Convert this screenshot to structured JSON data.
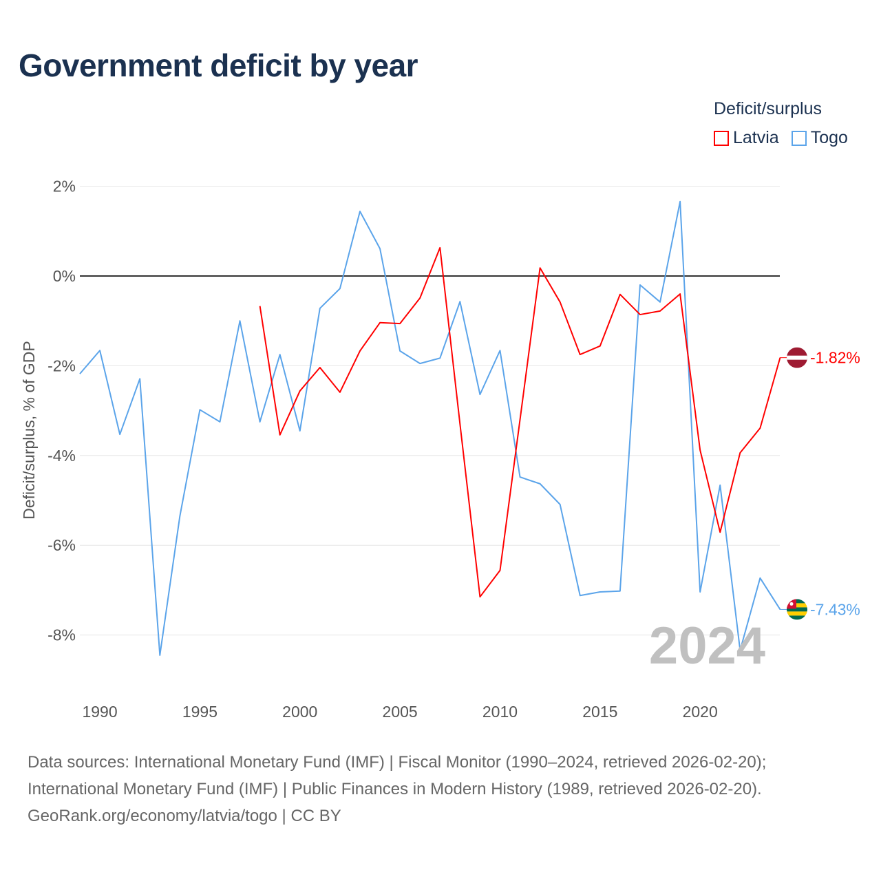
{
  "title": "Government deficit by year",
  "legend": {
    "title": "Deficit/surplus",
    "items": [
      {
        "label": "Latvia",
        "color": "#ff0000"
      },
      {
        "label": "Togo",
        "color": "#5ba4ea"
      }
    ]
  },
  "watermark_year": "2024",
  "footer": [
    "Data sources: International Monetary Fund (IMF) | Fiscal Monitor (1990–2024, retrieved 2026-02-20);",
    "International Monetary Fund (IMF) | Public Finances in Modern History (1989, retrieved 2026-02-20).",
    "GeoRank.org/economy/latvia/togo | CC BY"
  ],
  "chart_data": {
    "type": "line",
    "title": "Government deficit by year",
    "xlabel": "",
    "ylabel": "Deficit/surplus, % of GDP",
    "xlim": [
      1989,
      2024
    ],
    "ylim": [
      -9.5,
      2.5
    ],
    "x_ticks": [
      {
        "v": 1990,
        "label": "1990"
      },
      {
        "v": 1995,
        "label": "1995"
      },
      {
        "v": 2000,
        "label": "2000"
      },
      {
        "v": 2005,
        "label": "2005"
      },
      {
        "v": 2010,
        "label": "2010"
      },
      {
        "v": 2015,
        "label": "2015"
      },
      {
        "v": 2020,
        "label": "2020"
      }
    ],
    "y_ticks": [
      {
        "v": 2,
        "label": "2%"
      },
      {
        "v": 0,
        "label": "0%"
      },
      {
        "v": -2,
        "label": "-2%"
      },
      {
        "v": -4,
        "label": "-4%"
      },
      {
        "v": -6,
        "label": "-6%"
      },
      {
        "v": -8,
        "label": "-8%"
      }
    ],
    "grid": true,
    "legend_position": "top-right",
    "series": [
      {
        "name": "Latvia",
        "color": "#ff0000",
        "end_label": "-1.82%",
        "x": [
          1998,
          1999,
          2000,
          2001,
          2002,
          2003,
          2004,
          2005,
          2006,
          2007,
          2008,
          2009,
          2010,
          2011,
          2012,
          2013,
          2014,
          2015,
          2016,
          2017,
          2018,
          2019,
          2020,
          2021,
          2022,
          2023,
          2024
        ],
        "y": [
          -0.67,
          -3.54,
          -2.56,
          -2.04,
          -2.59,
          -1.67,
          -1.04,
          -1.06,
          -0.49,
          0.63,
          -3.3,
          -7.15,
          -6.56,
          -3.2,
          0.18,
          -0.58,
          -1.75,
          -1.56,
          -0.41,
          -0.86,
          -0.78,
          -0.4,
          -3.88,
          -5.71,
          -3.94,
          -3.39,
          -1.82
        ]
      },
      {
        "name": "Togo",
        "color": "#5ba4ea",
        "end_label": "-7.43%",
        "x": [
          1989,
          1990,
          1991,
          1992,
          1993,
          1994,
          1995,
          1996,
          1997,
          1998,
          1999,
          2000,
          2001,
          2002,
          2003,
          2004,
          2005,
          2006,
          2007,
          2008,
          2009,
          2010,
          2011,
          2012,
          2013,
          2014,
          2015,
          2016,
          2017,
          2018,
          2019,
          2020,
          2021,
          2022,
          2023,
          2024
        ],
        "y": [
          -2.18,
          -1.66,
          -3.53,
          -2.29,
          -8.45,
          -5.35,
          -2.98,
          -3.25,
          -1.0,
          -3.25,
          -1.75,
          -3.45,
          -0.72,
          -0.28,
          1.44,
          0.61,
          -1.67,
          -1.95,
          -1.83,
          -0.57,
          -2.64,
          -1.66,
          -4.48,
          -4.63,
          -5.09,
          -7.12,
          -7.04,
          -7.02,
          -0.2,
          -0.58,
          1.66,
          -7.04,
          -4.66,
          -8.34,
          -6.73,
          -7.43
        ]
      }
    ]
  }
}
